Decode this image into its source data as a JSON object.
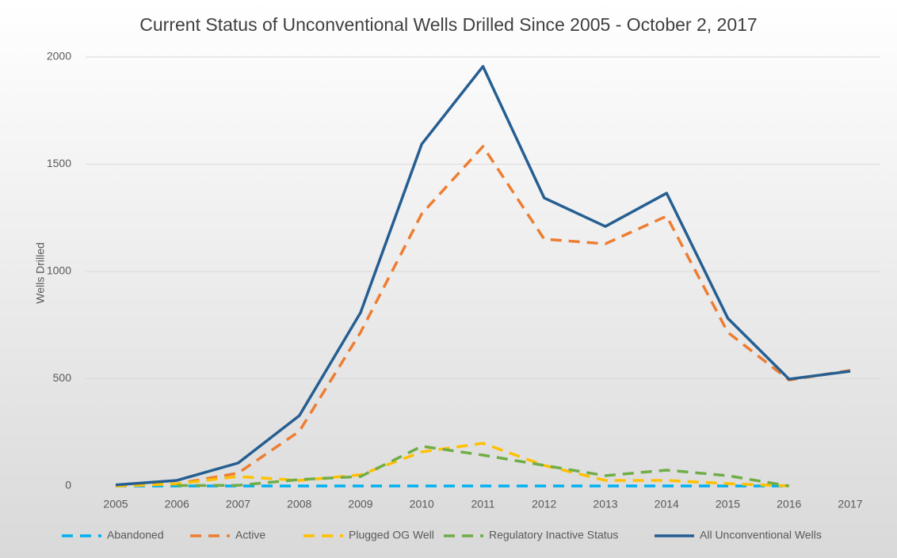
{
  "chart_data": {
    "type": "line",
    "title": "Current Status of Unconventional Wells Drilled Since 2005 - October 2, 2017",
    "y_label": "Wells Drilled",
    "categories": [
      "2005",
      "2006",
      "2007",
      "2008",
      "2009",
      "2010",
      "2011",
      "2012",
      "2013",
      "2014",
      "2015",
      "2016",
      "2017"
    ],
    "ylim": [
      0,
      2000
    ],
    "yticks": [
      0,
      500,
      1000,
      1500,
      2000
    ],
    "grid": true,
    "legend": "bottom",
    "series": [
      {
        "name": "Abandoned",
        "color": "#00b0f0",
        "dashed": true,
        "values": [
          0,
          0,
          0,
          0,
          0,
          0,
          0,
          0,
          0,
          0,
          0,
          0,
          null
        ]
      },
      {
        "name": "Active",
        "color": "#ed7d31",
        "dashed": true,
        "values": [
          0,
          10,
          60,
          255,
          716,
          1269,
          1583,
          1151,
          1129,
          1258,
          716,
          494,
          539
        ]
      },
      {
        "name": "Plugged OG Well",
        "color": "#ffc000",
        "dashed": true,
        "values": [
          0,
          10,
          44,
          26,
          52,
          159,
          199,
          96,
          26,
          26,
          11,
          0,
          null
        ]
      },
      {
        "name": "Regulatory Inactive Status",
        "color": "#70ad47",
        "dashed": true,
        "values": [
          null,
          2,
          3,
          30,
          44,
          185,
          144,
          96,
          48,
          74,
          48,
          0,
          null
        ]
      },
      {
        "name": "All Unconventional Wells",
        "color": "#255e91",
        "dashed": false,
        "values": [
          5,
          26,
          107,
          328,
          808,
          1594,
          1956,
          1343,
          1210,
          1365,
          782,
          498,
          535
        ]
      }
    ]
  }
}
